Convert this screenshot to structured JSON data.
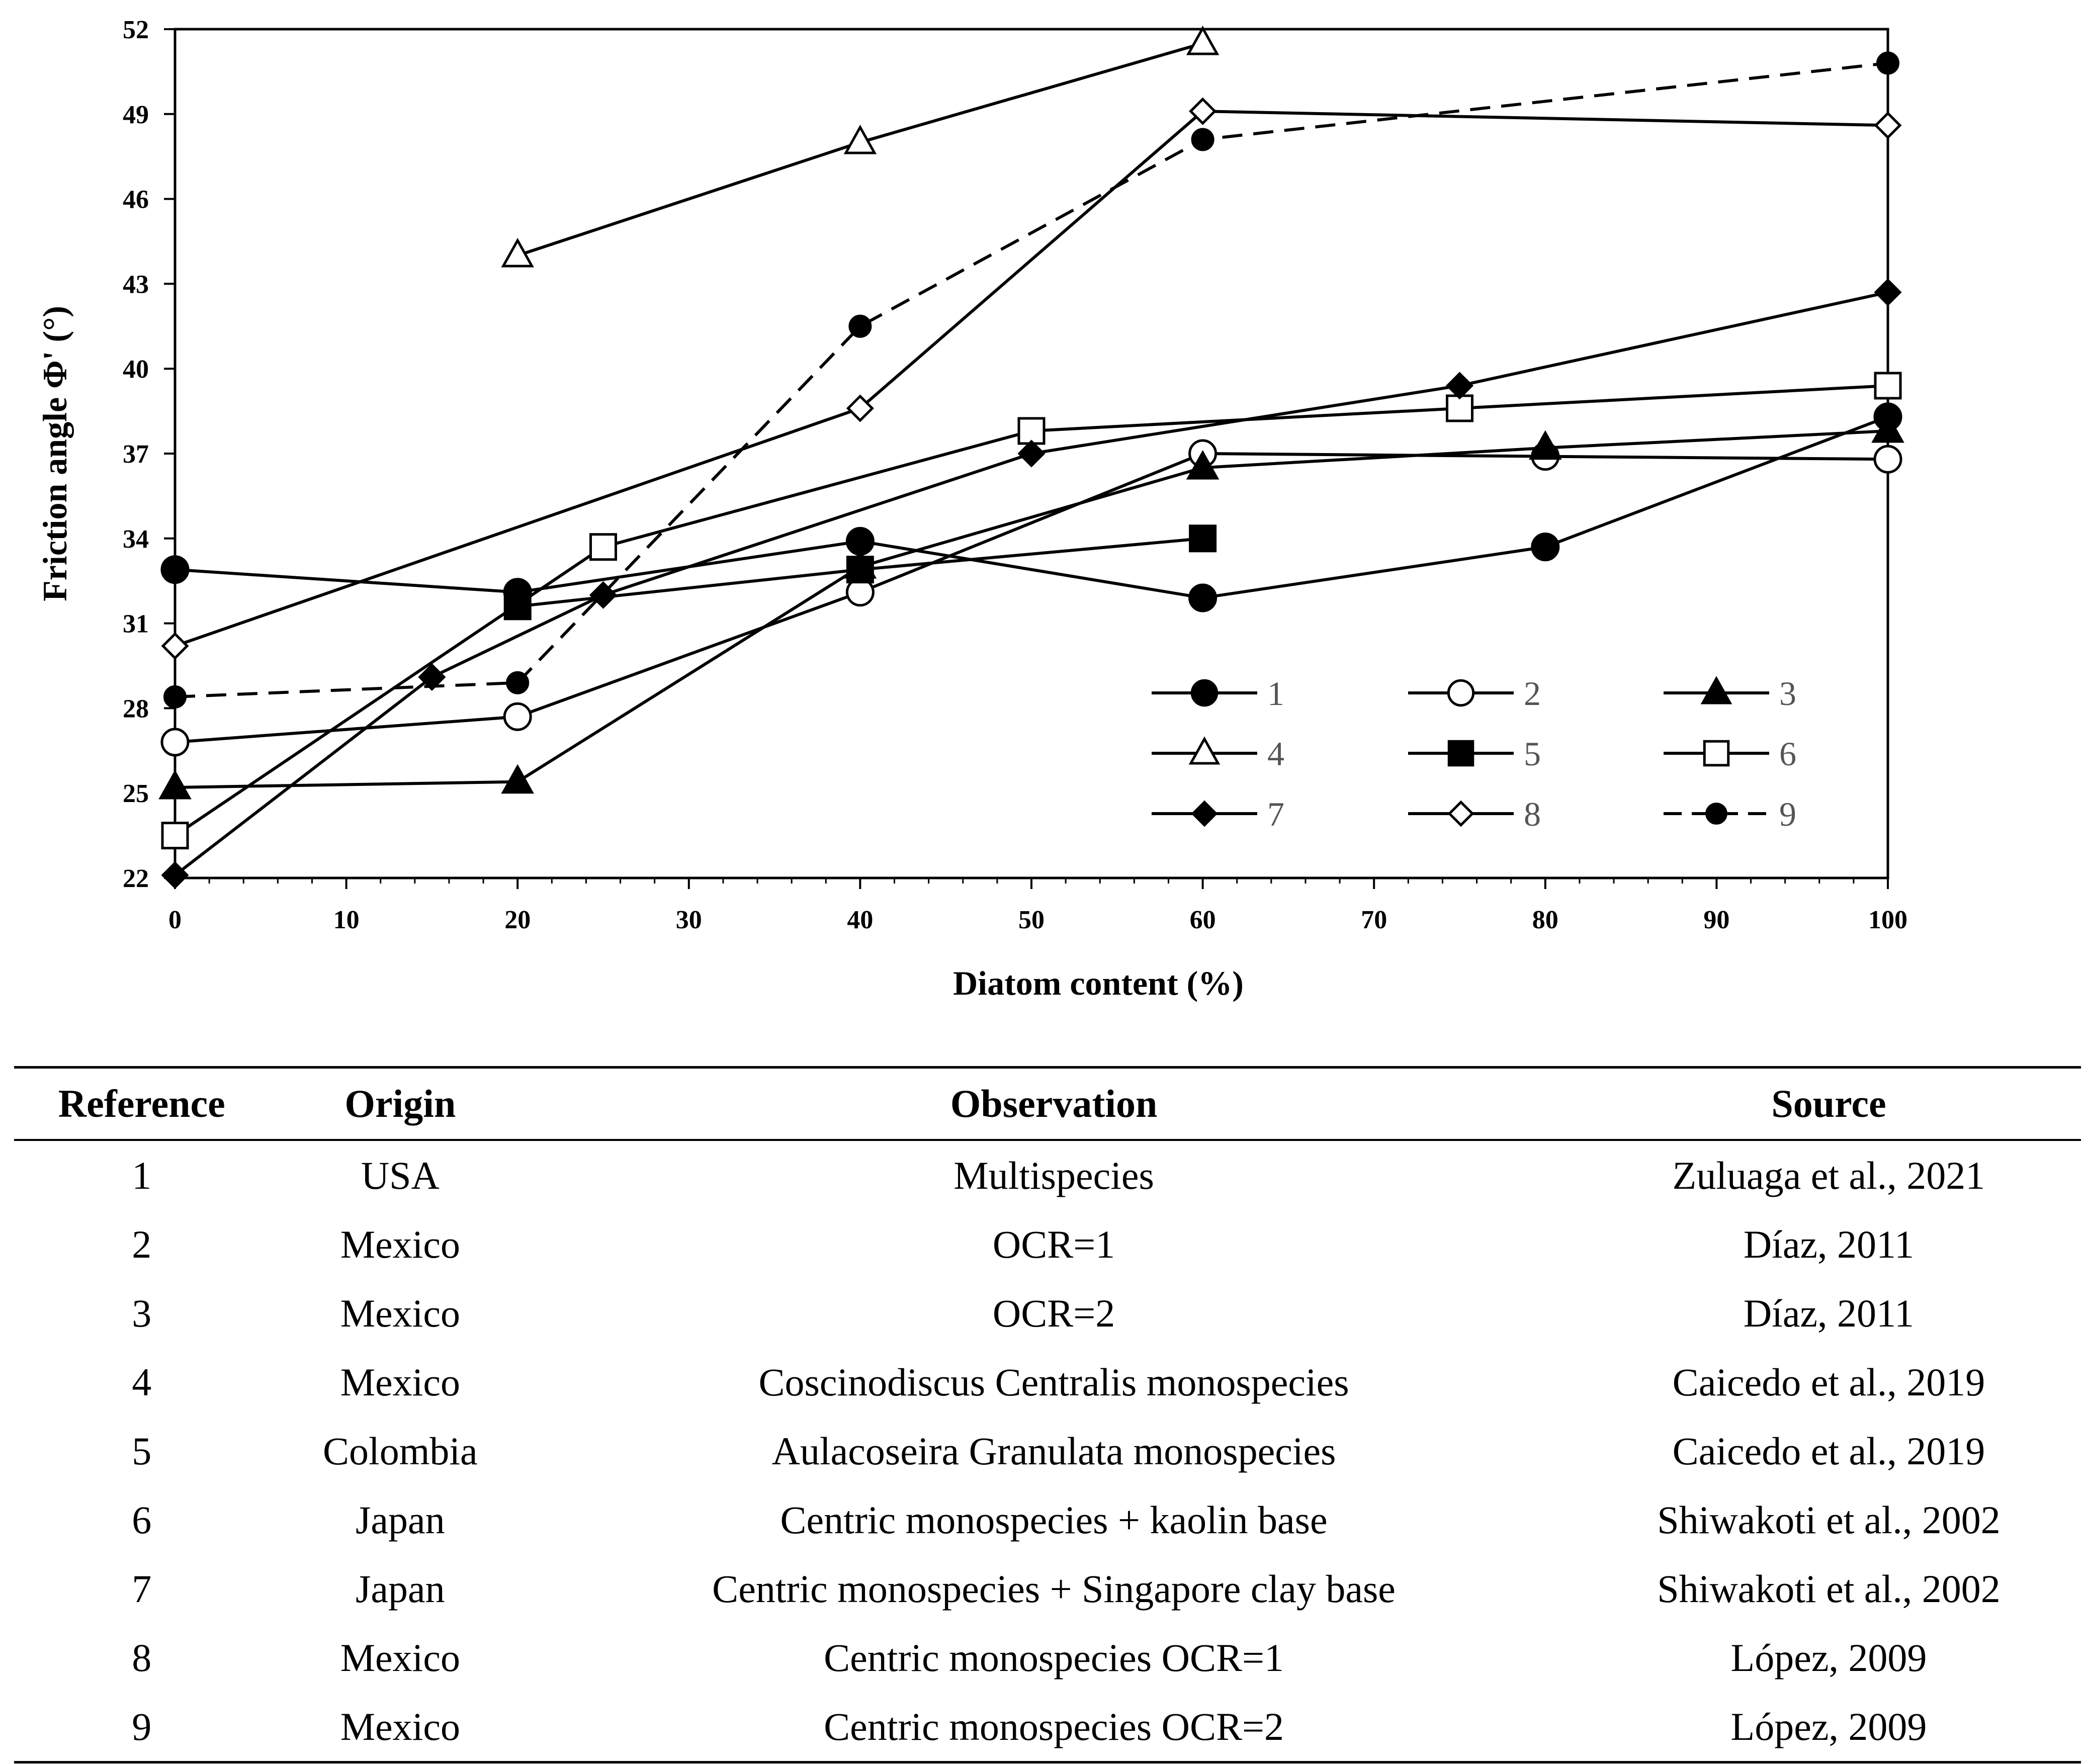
{
  "chart_data": {
    "type": "line",
    "xlabel": "Diatom content (%)",
    "ylabel": "Friction angle Φ' (°)",
    "xlim": [
      0,
      100
    ],
    "ylim": [
      22,
      52
    ],
    "x_ticks": [
      0,
      10,
      20,
      30,
      40,
      50,
      60,
      70,
      80,
      90,
      100
    ],
    "y_ticks": [
      22,
      25,
      28,
      31,
      34,
      37,
      40,
      43,
      46,
      49,
      52
    ],
    "grid": false,
    "legend_placement": "bottom-right",
    "series": [
      {
        "name": "1",
        "marker": "circle",
        "filled": true,
        "dashed": false,
        "points": [
          [
            0,
            32.9
          ],
          [
            20,
            32.1
          ],
          [
            40,
            33.9
          ],
          [
            60,
            31.9
          ],
          [
            80,
            33.7
          ],
          [
            100,
            38.3
          ]
        ]
      },
      {
        "name": "2",
        "marker": "circle",
        "filled": false,
        "dashed": false,
        "points": [
          [
            0,
            26.8
          ],
          [
            20,
            27.7
          ],
          [
            40,
            32.1
          ],
          [
            60,
            37.0
          ],
          [
            80,
            36.9
          ],
          [
            100,
            36.8
          ]
        ]
      },
      {
        "name": "3",
        "marker": "triangle",
        "filled": true,
        "dashed": false,
        "points": [
          [
            0,
            25.2
          ],
          [
            20,
            25.4
          ],
          [
            40,
            33.0
          ],
          [
            60,
            36.5
          ],
          [
            80,
            37.2
          ],
          [
            100,
            37.8
          ]
        ]
      },
      {
        "name": "4",
        "marker": "triangle",
        "filled": false,
        "dashed": false,
        "points": [
          [
            20,
            44.0
          ],
          [
            40,
            48.0
          ],
          [
            60,
            51.5
          ]
        ]
      },
      {
        "name": "5",
        "marker": "square",
        "filled": true,
        "dashed": false,
        "points": [
          [
            20,
            31.6
          ],
          [
            40,
            32.9
          ],
          [
            60,
            34.0
          ]
        ]
      },
      {
        "name": "6",
        "marker": "square",
        "filled": false,
        "dashed": false,
        "points": [
          [
            0,
            23.5
          ],
          [
            25,
            33.7
          ],
          [
            50,
            37.8
          ],
          [
            75,
            38.6
          ],
          [
            100,
            39.4
          ]
        ]
      },
      {
        "name": "7",
        "marker": "diamond",
        "filled": true,
        "dashed": false,
        "points": [
          [
            0,
            22.1
          ],
          [
            15,
            29.1
          ],
          [
            25,
            32.0
          ],
          [
            50,
            37.0
          ],
          [
            75,
            39.4
          ],
          [
            100,
            42.7
          ]
        ]
      },
      {
        "name": "8",
        "marker": "diamond",
        "filled": false,
        "dashed": false,
        "points": [
          [
            0,
            30.2
          ],
          [
            40,
            38.6
          ],
          [
            60,
            49.1
          ],
          [
            100,
            48.6
          ]
        ]
      },
      {
        "name": "9",
        "marker": "small-circle",
        "filled": true,
        "dashed": true,
        "points": [
          [
            0,
            28.4
          ],
          [
            20,
            28.9
          ],
          [
            40,
            41.5
          ],
          [
            60,
            48.1
          ],
          [
            100,
            50.8
          ]
        ]
      }
    ]
  },
  "table": {
    "headers": [
      "Reference",
      "Origin",
      "Observation",
      "Source"
    ],
    "rows": [
      [
        "1",
        "USA",
        "Multispecies",
        "Zuluaga et al., 2021"
      ],
      [
        "2",
        "Mexico",
        "OCR=1",
        "Díaz, 2011"
      ],
      [
        "3",
        "Mexico",
        "OCR=2",
        "Díaz, 2011"
      ],
      [
        "4",
        "Mexico",
        "Coscinodiscus Centralis monospecies",
        "Caicedo et al., 2019"
      ],
      [
        "5",
        "Colombia",
        "Aulacoseira Granulata monospecies",
        "Caicedo et al., 2019"
      ],
      [
        "6",
        "Japan",
        "Centric monospecies + kaolin base",
        "Shiwakoti et al., 2002"
      ],
      [
        "7",
        "Japan",
        "Centric monospecies + Singapore clay base",
        "Shiwakoti et al., 2002"
      ],
      [
        "8",
        "Mexico",
        "Centric monospecies OCR=1",
        "López, 2009"
      ],
      [
        "9",
        "Mexico",
        "Centric monospecies OCR=2",
        "López, 2009"
      ]
    ]
  }
}
